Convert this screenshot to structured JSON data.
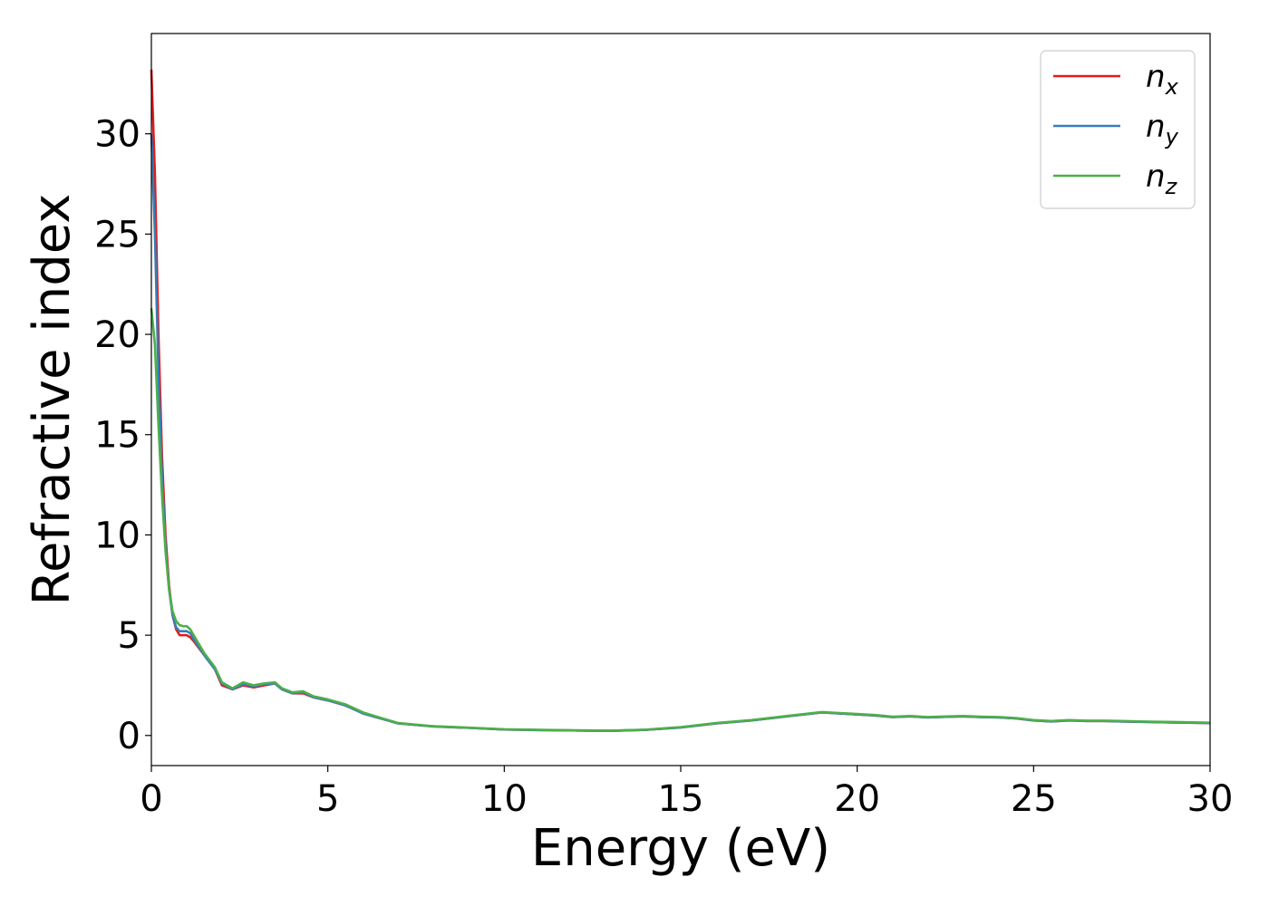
{
  "chart_data": {
    "type": "line",
    "xlabel": "Energy (eV)",
    "ylabel": "Refractive index",
    "xlim": [
      0,
      30
    ],
    "ylim": [
      -1.5,
      35
    ],
    "xticks": [
      "0",
      "5",
      "10",
      "15",
      "20",
      "25",
      "30"
    ],
    "yticks": [
      "0",
      "5",
      "10",
      "15",
      "20",
      "25",
      "30"
    ],
    "grid": false,
    "legend_position": "top-right",
    "series": [
      {
        "name_base": "n",
        "name_sub": "x",
        "color": "#e41a1c",
        "x": [
          0,
          0.1,
          0.2,
          0.3,
          0.4,
          0.5,
          0.6,
          0.7,
          0.8,
          0.9,
          1.0,
          1.1,
          1.2,
          1.5,
          1.8,
          2.0,
          2.3,
          2.6,
          2.9,
          3.2,
          3.5,
          3.7,
          4.0,
          4.3,
          4.6,
          5.0,
          5.5,
          6.0,
          6.5,
          7.0,
          8.0,
          9.0,
          10.0,
          11.0,
          12.0,
          13.0,
          14.0,
          15.0,
          16.0,
          17.0,
          18.0,
          19.0,
          19.5,
          20.0,
          20.5,
          21.0,
          21.5,
          22.0,
          22.5,
          23.0,
          23.5,
          24.0,
          24.5,
          25.0,
          25.5,
          26.0,
          26.5,
          27.0,
          27.5,
          28.0,
          29.0,
          30.0
        ],
        "y": [
          33.2,
          28.0,
          20.0,
          14.0,
          10.0,
          7.5,
          6.0,
          5.3,
          5.0,
          5.0,
          5.0,
          4.9,
          4.7,
          4.0,
          3.3,
          2.5,
          2.3,
          2.5,
          2.4,
          2.5,
          2.6,
          2.3,
          2.1,
          2.1,
          1.9,
          1.75,
          1.5,
          1.1,
          0.85,
          0.6,
          0.45,
          0.38,
          0.3,
          0.27,
          0.25,
          0.23,
          0.28,
          0.4,
          0.6,
          0.75,
          0.95,
          1.15,
          1.1,
          1.05,
          1.0,
          0.92,
          0.95,
          0.9,
          0.93,
          0.95,
          0.92,
          0.9,
          0.85,
          0.75,
          0.7,
          0.75,
          0.72,
          0.72,
          0.7,
          0.68,
          0.65,
          0.62
        ]
      },
      {
        "name_base": "n",
        "name_sub": "y",
        "color": "#377eb8",
        "x": [
          0,
          0.1,
          0.2,
          0.3,
          0.4,
          0.5,
          0.6,
          0.7,
          0.8,
          0.9,
          1.0,
          1.1,
          1.2,
          1.5,
          1.8,
          2.0,
          2.3,
          2.6,
          2.9,
          3.2,
          3.5,
          3.7,
          4.0,
          4.3,
          4.6,
          5.0,
          5.5,
          6.0,
          6.5,
          7.0,
          8.0,
          9.0,
          10.0,
          11.0,
          12.0,
          13.0,
          14.0,
          15.0,
          16.0,
          17.0,
          18.0,
          19.0,
          19.5,
          20.0,
          20.5,
          21.0,
          21.5,
          22.0,
          22.5,
          23.0,
          23.5,
          24.0,
          24.5,
          25.0,
          25.5,
          26.0,
          26.5,
          27.0,
          27.5,
          28.0,
          29.0,
          30.0
        ],
        "y": [
          30.0,
          25.0,
          18.0,
          13.0,
          9.5,
          7.3,
          6.0,
          5.4,
          5.2,
          5.2,
          5.2,
          5.1,
          4.8,
          4.0,
          3.3,
          2.6,
          2.3,
          2.55,
          2.45,
          2.55,
          2.6,
          2.3,
          2.1,
          2.15,
          1.9,
          1.75,
          1.5,
          1.1,
          0.85,
          0.6,
          0.45,
          0.38,
          0.3,
          0.27,
          0.25,
          0.23,
          0.28,
          0.4,
          0.6,
          0.75,
          0.95,
          1.15,
          1.1,
          1.05,
          1.0,
          0.92,
          0.95,
          0.9,
          0.93,
          0.95,
          0.92,
          0.9,
          0.85,
          0.75,
          0.7,
          0.75,
          0.72,
          0.72,
          0.7,
          0.68,
          0.65,
          0.62
        ]
      },
      {
        "name_base": "n",
        "name_sub": "z",
        "color": "#4daf4a",
        "x": [
          0,
          0.1,
          0.2,
          0.3,
          0.4,
          0.5,
          0.6,
          0.7,
          0.8,
          0.9,
          1.0,
          1.1,
          1.2,
          1.5,
          1.8,
          2.0,
          2.3,
          2.6,
          2.9,
          3.2,
          3.5,
          3.7,
          4.0,
          4.3,
          4.6,
          5.0,
          5.5,
          6.0,
          6.5,
          7.0,
          8.0,
          9.0,
          10.0,
          11.0,
          12.0,
          13.0,
          14.0,
          15.0,
          16.0,
          17.0,
          18.0,
          19.0,
          19.5,
          20.0,
          20.5,
          21.0,
          21.5,
          22.0,
          22.5,
          23.0,
          23.5,
          24.0,
          24.5,
          25.0,
          25.5,
          26.0,
          26.5,
          27.0,
          27.5,
          28.0,
          29.0,
          30.0
        ],
        "y": [
          21.3,
          19.5,
          15.5,
          12.0,
          9.2,
          7.3,
          6.2,
          5.7,
          5.5,
          5.45,
          5.45,
          5.3,
          5.0,
          4.1,
          3.4,
          2.65,
          2.35,
          2.65,
          2.5,
          2.6,
          2.65,
          2.35,
          2.15,
          2.2,
          1.95,
          1.8,
          1.55,
          1.15,
          0.88,
          0.62,
          0.46,
          0.39,
          0.31,
          0.28,
          0.26,
          0.24,
          0.29,
          0.42,
          0.62,
          0.77,
          0.97,
          1.17,
          1.12,
          1.07,
          1.02,
          0.94,
          0.97,
          0.92,
          0.95,
          0.97,
          0.94,
          0.92,
          0.87,
          0.77,
          0.72,
          0.77,
          0.74,
          0.74,
          0.72,
          0.7,
          0.67,
          0.64
        ]
      }
    ]
  }
}
